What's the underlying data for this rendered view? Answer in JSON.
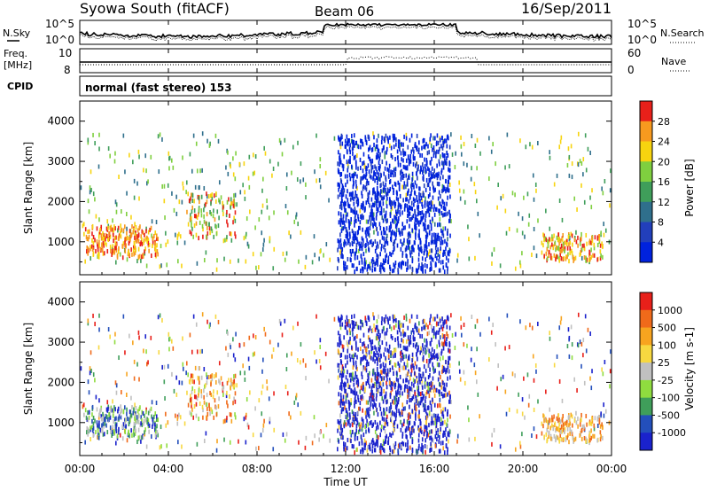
{
  "header": {
    "title": "Syowa South (fitACF)",
    "beam": "Beam 06",
    "date": "16/Sep/2011"
  },
  "noise_panel": {
    "left_label": "N.Sky",
    "right_label": "N.Search",
    "left_ticks": [
      "10^5",
      "10^0"
    ],
    "right_ticks": [
      "10^5",
      "10^0"
    ]
  },
  "freq_panel": {
    "left_label_1": "Freq.",
    "left_label_2": "[MHz]",
    "left_ticks": [
      "10",
      "8"
    ],
    "right_label": "Nave",
    "right_ticks": [
      "60",
      "0"
    ]
  },
  "cpid_panel": {
    "label": "CPID",
    "text": "normal (fast stereo) 153"
  },
  "x_axis": {
    "label": "Time UT",
    "ticks": [
      "00:00",
      "04:00",
      "08:00",
      "12:00",
      "16:00",
      "20:00",
      "00:00"
    ]
  },
  "chart_data": [
    {
      "type": "heatmap",
      "title": "",
      "ylabel": "Slant Range [km]",
      "y_ticks": [
        "1000",
        "2000",
        "3000",
        "4000"
      ],
      "ylim": [
        180,
        4500
      ],
      "xlim_hours": [
        0,
        24
      ],
      "colorbar": {
        "label": "Power [dB]",
        "ticks": [
          "28",
          "24",
          "20",
          "16",
          "12",
          "8",
          "4"
        ],
        "range": [
          0,
          30
        ],
        "colors": [
          "#0022dd",
          "#223fbb",
          "#2f6f8c",
          "#3f9e5a",
          "#7fcf3f",
          "#f7d40f",
          "#f79a1f",
          "#e8201a"
        ]
      }
    },
    {
      "type": "heatmap",
      "title": "",
      "ylabel": "Slant Range [km]",
      "y_ticks": [
        "1000",
        "2000",
        "3000",
        "4000"
      ],
      "ylim": [
        180,
        4500
      ],
      "xlim_hours": [
        0,
        24
      ],
      "colorbar": {
        "label": "Velocity [m s-1]",
        "ticks": [
          "1000",
          "500",
          "100",
          "25",
          "-25",
          "-100",
          "-500",
          "-1000"
        ],
        "range": [
          -1000,
          1000
        ],
        "colors": [
          "#e8201a",
          "#f06a1a",
          "#f7a41f",
          "#f7d840",
          "#c0c0c0",
          "#8fdc3f",
          "#3f9e5a",
          "#234fbb",
          "#1a22cc"
        ]
      }
    }
  ]
}
